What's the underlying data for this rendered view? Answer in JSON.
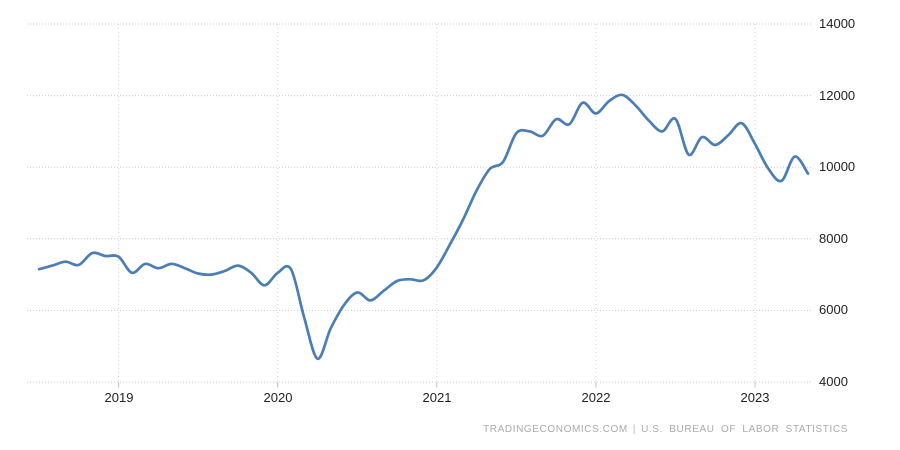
{
  "chart_data": {
    "type": "line",
    "title": "",
    "series_label": "",
    "line_color": "#4a7eb5",
    "grid": "dotted",
    "legend": "none",
    "x_start": "2018-07",
    "x_end": "2023-05",
    "frequency": "monthly",
    "x": [
      "2018-07",
      "2018-08",
      "2018-09",
      "2018-10",
      "2018-11",
      "2018-12",
      "2019-01",
      "2019-02",
      "2019-03",
      "2019-04",
      "2019-05",
      "2019-06",
      "2019-07",
      "2019-08",
      "2019-09",
      "2019-10",
      "2019-11",
      "2019-12",
      "2020-01",
      "2020-02",
      "2020-03",
      "2020-04",
      "2020-05",
      "2020-06",
      "2020-07",
      "2020-08",
      "2020-09",
      "2020-10",
      "2020-11",
      "2020-12",
      "2021-01",
      "2021-02",
      "2021-03",
      "2021-04",
      "2021-05",
      "2021-06",
      "2021-07",
      "2021-08",
      "2021-09",
      "2021-10",
      "2021-11",
      "2021-12",
      "2022-01",
      "2022-02",
      "2022-03",
      "2022-04",
      "2022-05",
      "2022-06",
      "2022-07",
      "2022-08",
      "2022-09",
      "2022-10",
      "2022-11",
      "2022-12",
      "2023-01",
      "2023-02",
      "2023-03",
      "2023-04",
      "2023-05"
    ],
    "values": [
      7150,
      7250,
      7360,
      7270,
      7600,
      7520,
      7500,
      7050,
      7300,
      7180,
      7300,
      7180,
      7030,
      7000,
      7100,
      7250,
      7050,
      6700,
      7050,
      7150,
      5800,
      4650,
      5500,
      6150,
      6500,
      6280,
      6550,
      6820,
      6870,
      6840,
      7200,
      7850,
      8550,
      9350,
      9950,
      10150,
      10950,
      11000,
      10880,
      11340,
      11200,
      11800,
      11500,
      11850,
      12020,
      11720,
      11300,
      11000,
      11350,
      10350,
      10840,
      10620,
      10900,
      11230,
      10650,
      9960,
      9620,
      10300,
      9820
    ],
    "xlabel": "",
    "ylabel": "",
    "ylim": [
      4000,
      14000
    ],
    "y_tick_values": [
      14000,
      12000,
      10000,
      8000,
      6000,
      4000
    ],
    "y_tick_labels": [
      "14000",
      "12000",
      "10000",
      "8000",
      "6000",
      "4000"
    ],
    "x_ticks": [
      "2019",
      "2020",
      "2021",
      "2022",
      "2023"
    ],
    "x_tick_month_index": [
      6,
      18,
      30,
      42,
      54
    ]
  },
  "attribution": {
    "source": "TRADINGECONOMICS.COM",
    "separator": "|",
    "provider": "U.S. BUREAU OF LABOR STATISTICS"
  }
}
